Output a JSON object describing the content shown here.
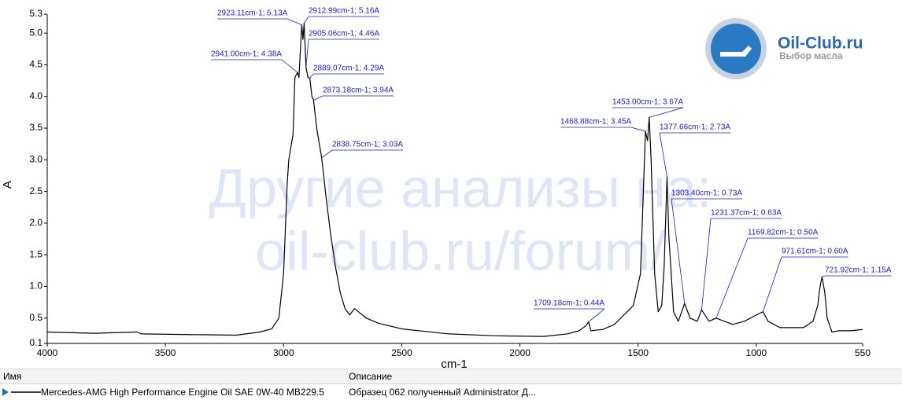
{
  "chart_data": {
    "type": "line",
    "xlabel": "cm-1",
    "ylabel": "A",
    "xlim": [
      4000,
      550
    ],
    "ylim": [
      0.1,
      5.3
    ],
    "xticks": [
      4000,
      3500,
      3000,
      2500,
      2000,
      1500,
      1000,
      550
    ],
    "yticks": [
      0.1,
      0.5,
      {
        "value": 1,
        "label": "1.0"
      },
      1.5,
      {
        "value": 2,
        "label": "2.0"
      },
      2.5,
      {
        "value": 3,
        "label": "3.0"
      },
      3.5,
      {
        "value": 4,
        "label": "4.0"
      },
      4.5,
      {
        "value": 5,
        "label": "5.0"
      },
      5.3
    ],
    "series": [
      {
        "color": "#000000",
        "x": [
          4000,
          3800,
          3620,
          3600,
          3400,
          3200,
          3100,
          3050,
          3020,
          3000,
          2985,
          2978,
          2960,
          2952,
          2941,
          2935,
          2923.11,
          2918,
          2912.99,
          2905.06,
          2897,
          2889.07,
          2880,
          2873.18,
          2860,
          2838.75,
          2820,
          2800,
          2780,
          2760,
          2740,
          2720,
          2700,
          2650,
          2600,
          2500,
          2300,
          2100,
          1900,
          1800,
          1750,
          1720,
          1709.18,
          1700,
          1650,
          1600,
          1560,
          1520,
          1490,
          1475,
          1468.88,
          1460,
          1453,
          1445,
          1430,
          1415,
          1400,
          1390,
          1377.66,
          1370,
          1365,
          1350,
          1330,
          1303.4,
          1280,
          1250,
          1231.37,
          1200,
          1169.82,
          1100,
          1050,
          1000,
          971.61,
          950,
          900,
          850,
          800,
          760,
          740,
          730,
          721.92,
          710,
          700,
          680,
          650,
          600,
          550
        ],
        "values": [
          0.28,
          0.26,
          0.28,
          0.25,
          0.24,
          0.23,
          0.28,
          0.33,
          0.5,
          1.2,
          2.6,
          3.0,
          3.4,
          4.3,
          4.38,
          4.3,
          5.13,
          4.9,
          5.16,
          4.46,
          4.3,
          4.29,
          4.0,
          3.94,
          3.5,
          3.03,
          2.4,
          1.8,
          1.3,
          0.9,
          0.65,
          0.55,
          0.65,
          0.5,
          0.42,
          0.33,
          0.25,
          0.22,
          0.21,
          0.25,
          0.3,
          0.38,
          0.44,
          0.3,
          0.32,
          0.4,
          0.55,
          0.7,
          1.2,
          2.8,
          3.45,
          3.3,
          3.67,
          3.0,
          1.2,
          0.6,
          0.7,
          1.3,
          2.73,
          1.8,
          1.5,
          0.6,
          0.45,
          0.73,
          0.5,
          0.45,
          0.63,
          0.45,
          0.5,
          0.4,
          0.45,
          0.55,
          0.6,
          0.45,
          0.35,
          0.35,
          0.35,
          0.45,
          0.7,
          1.0,
          1.15,
          0.9,
          0.5,
          0.28,
          0.3,
          0.3,
          0.32
        ]
      }
    ],
    "annotations": [
      {
        "text": "2923.11cm-1; 5.13A",
        "x": 2923.11,
        "y": 5.13
      },
      {
        "text": "2912.99cm-1; 5.16A",
        "x": 2912.99,
        "y": 5.16
      },
      {
        "text": "2905.06cm-1; 4.46A",
        "x": 2905.06,
        "y": 4.46
      },
      {
        "text": "2941.00cm-1; 4.38A",
        "x": 2941,
        "y": 4.38
      },
      {
        "text": "2889.07cm-1; 4.29A",
        "x": 2889.07,
        "y": 4.29
      },
      {
        "text": "2873.18cm-1; 3.94A",
        "x": 2873.18,
        "y": 3.94
      },
      {
        "text": "2838.75cm-1; 3.03A",
        "x": 2838.75,
        "y": 3.03
      },
      {
        "text": "1453.00cm-1; 3.67A",
        "x": 1453,
        "y": 3.67
      },
      {
        "text": "1468.88cm-1; 3.45A",
        "x": 1468.88,
        "y": 3.45
      },
      {
        "text": "1377.66cm-1; 2.73A",
        "x": 1377.66,
        "y": 2.73
      },
      {
        "text": "1303.40cm-1; 0.73A",
        "x": 1303.4,
        "y": 0.73
      },
      {
        "text": "1231.37cm-1; 0.63A",
        "x": 1231.37,
        "y": 0.63
      },
      {
        "text": "1169.82cm-1; 0.50A",
        "x": 1169.82,
        "y": 0.5
      },
      {
        "text": "971.61cm-1; 0.60A",
        "x": 971.61,
        "y": 0.6
      },
      {
        "text": "721.92cm-1; 1.15A",
        "x": 721.92,
        "y": 1.15
      },
      {
        "text": "1709.18cm-1; 0.44A",
        "x": 1709.18,
        "y": 0.44
      }
    ]
  },
  "watermark": [
    "Другие анализы на:",
    "oil-club.ru/forum/"
  ],
  "logo": {
    "name": "Oil-Club.ru",
    "tagline": "Выбор масла"
  },
  "table": {
    "headers": [
      "Имя",
      "Описание"
    ],
    "rows": [
      [
        "Mercedes-AMG High Performance Engine Oil SAE 0W-40 MB229.5",
        "Образец 062 полученный Administrator Д..."
      ]
    ]
  }
}
